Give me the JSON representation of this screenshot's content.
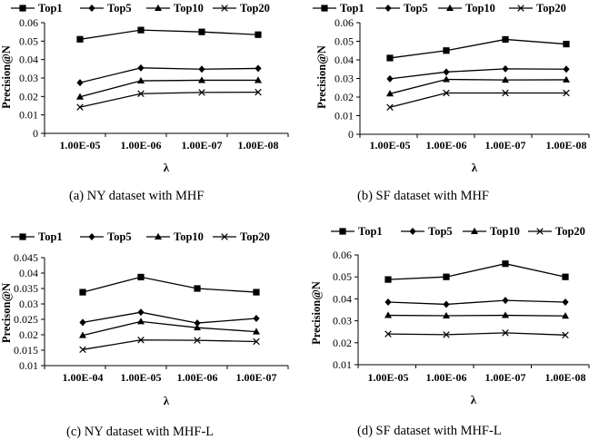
{
  "chart_data": [
    {
      "type": "line",
      "caption": "(a)  NY dataset with MHF",
      "categories": [
        "1.00E-05",
        "1.00E-06",
        "1.00E-07",
        "1.00E-08"
      ],
      "xlabel": "λ",
      "ylabel": "Precision@N",
      "ylim": [
        0,
        0.06
      ],
      "yticks": [
        "0",
        "0.01",
        "0.02",
        "0.03",
        "0.04",
        "0.05",
        "0.06"
      ],
      "legend_position": "top",
      "series": [
        {
          "name": "Top1",
          "values": [
            0.051,
            0.056,
            0.055,
            0.0535
          ]
        },
        {
          "name": "Top5",
          "values": [
            0.0275,
            0.0355,
            0.0348,
            0.0352
          ]
        },
        {
          "name": "Top10",
          "values": [
            0.0198,
            0.0285,
            0.0288,
            0.0288
          ]
        },
        {
          "name": "Top20",
          "values": [
            0.0142,
            0.0215,
            0.0222,
            0.0223
          ]
        }
      ]
    },
    {
      "type": "line",
      "caption": "(b)  SF dataset with MHF",
      "categories": [
        "1.00E-05",
        "1.00E-06",
        "1.00E-07",
        "1.00E-08"
      ],
      "xlabel": "λ",
      "ylabel": "Precision@N",
      "ylim": [
        0,
        0.06
      ],
      "yticks": [
        "0",
        "0.01",
        "0.02",
        "0.03",
        "0.04",
        "0.05",
        "0.06"
      ],
      "legend_position": "top",
      "series": [
        {
          "name": "Top1",
          "values": [
            0.041,
            0.045,
            0.051,
            0.0485
          ]
        },
        {
          "name": "Top5",
          "values": [
            0.0298,
            0.0335,
            0.0352,
            0.035
          ]
        },
        {
          "name": "Top10",
          "values": [
            0.0218,
            0.0295,
            0.0292,
            0.0293
          ]
        },
        {
          "name": "Top20",
          "values": [
            0.0145,
            0.0222,
            0.0222,
            0.0222
          ]
        }
      ]
    },
    {
      "type": "line",
      "caption": "(c)  NY dataset with MHF-L",
      "categories": [
        "1.00E-04",
        "1.00E-05",
        "1.00E-06",
        "1.00E-07"
      ],
      "xlabel": "λ",
      "ylabel": "Precison@N",
      "ylim": [
        0.01,
        0.045
      ],
      "yticks": [
        "0.01",
        "0.015",
        "0.02",
        "0.025",
        "0.03",
        "0.035",
        "0.04",
        "0.045"
      ],
      "legend_position": "top",
      "series": [
        {
          "name": "Top1",
          "values": [
            0.0338,
            0.0387,
            0.035,
            0.0338
          ]
        },
        {
          "name": "Top5",
          "values": [
            0.024,
            0.0273,
            0.0238,
            0.0253
          ]
        },
        {
          "name": "Top10",
          "values": [
            0.0198,
            0.0243,
            0.0223,
            0.021
          ]
        },
        {
          "name": "Top20",
          "values": [
            0.0152,
            0.0183,
            0.0182,
            0.0178
          ]
        }
      ]
    },
    {
      "type": "line",
      "caption": "(d)  SF dataset with MHF-L",
      "categories": [
        "1.00E-05",
        "1.00E-06",
        "1.00E-07",
        "1.00E-08"
      ],
      "xlabel": "λ",
      "ylabel": "Precision@N",
      "ylim": [
        0.01,
        0.06
      ],
      "yticks": [
        "0.01",
        "0.02",
        "0.03",
        "0.04",
        "0.05",
        "0.06"
      ],
      "legend_position": "top",
      "series": [
        {
          "name": "Top1",
          "values": [
            0.0488,
            0.05,
            0.056,
            0.05
          ]
        },
        {
          "name": "Top5",
          "values": [
            0.0385,
            0.0375,
            0.0393,
            0.0385
          ]
        },
        {
          "name": "Top10",
          "values": [
            0.0325,
            0.0323,
            0.0325,
            0.0322
          ]
        },
        {
          "name": "Top20",
          "values": [
            0.024,
            0.0237,
            0.0245,
            0.0235
          ]
        }
      ]
    }
  ]
}
